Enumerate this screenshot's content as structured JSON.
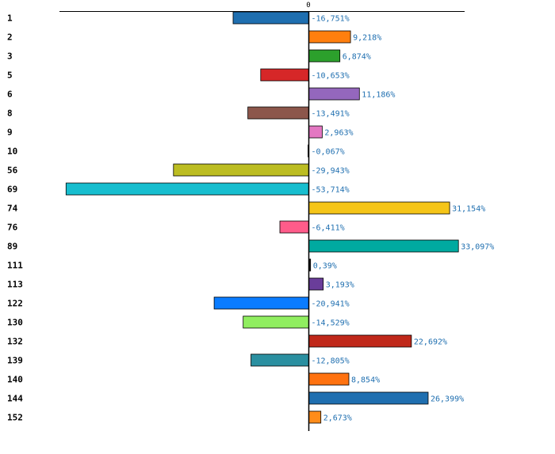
{
  "chart_data": {
    "type": "bar",
    "orientation": "horizontal",
    "title": "",
    "xlabel": "",
    "ylabel": "",
    "zero_label": "0",
    "categories": [
      "1",
      "2",
      "3",
      "5",
      "6",
      "8",
      "9",
      "10",
      "56",
      "69",
      "74",
      "76",
      "89",
      "111",
      "113",
      "122",
      "130",
      "132",
      "139",
      "140",
      "144",
      "152"
    ],
    "values": [
      -16.751,
      9.218,
      6.874,
      -10.653,
      11.186,
      -13.491,
      2.963,
      -0.067,
      -29.943,
      -53.714,
      31.154,
      -6.411,
      33.097,
      0.39,
      3.193,
      -20.941,
      -14.529,
      22.692,
      -12.805,
      8.854,
      26.399,
      2.673
    ],
    "value_labels": [
      "-16,751%",
      "9,218%",
      "6,874%",
      "-10,653%",
      "11,186%",
      "-13,491%",
      "2,963%",
      "-0,067%",
      "-29,943%",
      "-53,714%",
      "31,154%",
      "-6,411%",
      "33,097%",
      "0,39%",
      "3,193%",
      "-20,941%",
      "-14,529%",
      "22,692%",
      "-12,805%",
      "8,854%",
      "26,399%",
      "2,673%"
    ],
    "colors": [
      "#1f6fb0",
      "#ff7f0e",
      "#2ca02c",
      "#d62728",
      "#9467bd",
      "#8c564b",
      "#e377c2",
      "#7f7f7f",
      "#bcbd22",
      "#17becf",
      "#f5c518",
      "#ff5c8a",
      "#00aaa0",
      "#1a1a1a",
      "#6a3d9a",
      "#0a7cff",
      "#90ee60",
      "#c0281a",
      "#2a8fa0",
      "#ff7210",
      "#1f6fb0",
      "#ff8c1a"
    ],
    "xlim": [
      -54,
      34
    ],
    "grid": false,
    "legend": "none"
  }
}
